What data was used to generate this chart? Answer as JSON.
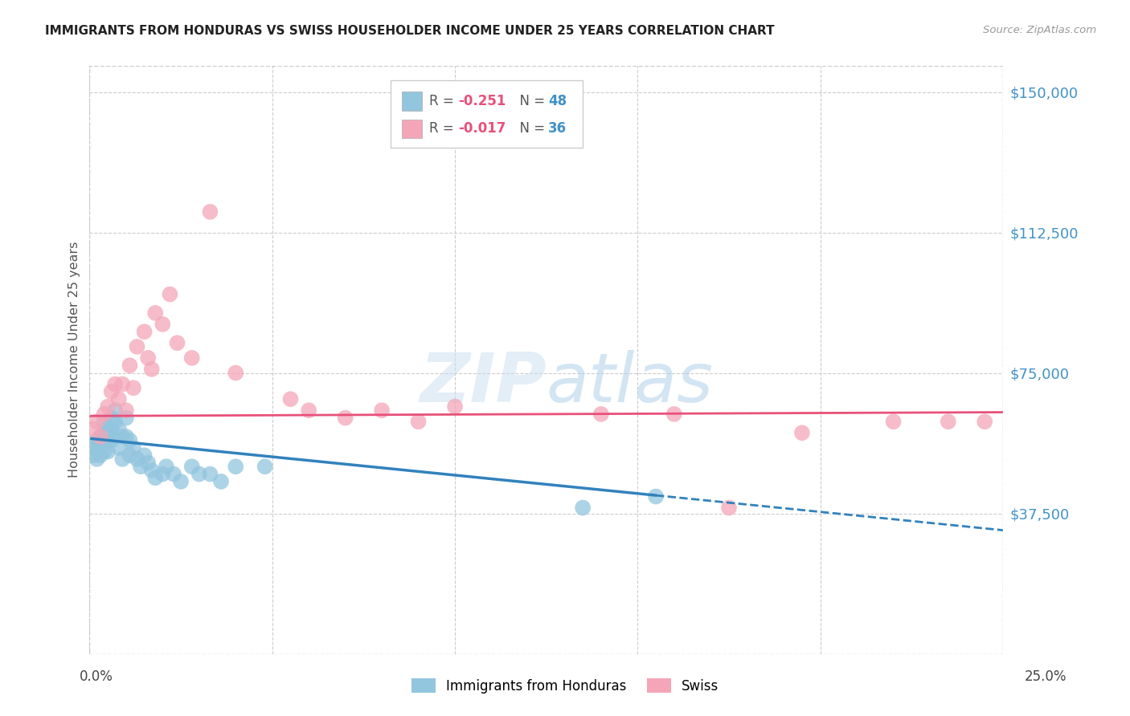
{
  "title": "IMMIGRANTS FROM HONDURAS VS SWISS HOUSEHOLDER INCOME UNDER 25 YEARS CORRELATION CHART",
  "source": "Source: ZipAtlas.com",
  "ylabel": "Householder Income Under 25 years",
  "xmin": 0.0,
  "xmax": 0.25,
  "ymin": 0,
  "ymax": 157000,
  "yticks": [
    0,
    37500,
    75000,
    112500,
    150000
  ],
  "ytick_labels": [
    "",
    "$37,500",
    "$75,000",
    "$112,500",
    "$150,000"
  ],
  "xtick_positions": [
    0.0,
    0.05,
    0.1,
    0.15,
    0.2,
    0.25
  ],
  "blue_color": "#92c5de",
  "pink_color": "#f4a6b8",
  "blue_line_color": "#3182bd",
  "pink_line_color": "#e8517a",
  "watermark": "ZIPatlas",
  "blue_R": "-0.251",
  "blue_N": "48",
  "pink_R": "-0.017",
  "pink_N": "36",
  "legend_label1": "Immigrants from Honduras",
  "legend_label2": "Swiss",
  "blue_trend_solid_end": 0.155,
  "blue_trend_x0": 0.0,
  "blue_trend_y0": 57500,
  "blue_trend_x1": 0.25,
  "blue_trend_y1": 33000,
  "pink_trend_x0": 0.0,
  "pink_trend_y0": 63500,
  "pink_trend_x1": 0.25,
  "pink_trend_y1": 64500,
  "honduras_x": [
    0.001,
    0.001,
    0.002,
    0.002,
    0.002,
    0.003,
    0.003,
    0.003,
    0.004,
    0.004,
    0.004,
    0.004,
    0.005,
    0.005,
    0.005,
    0.006,
    0.006,
    0.006,
    0.007,
    0.007,
    0.007,
    0.008,
    0.008,
    0.009,
    0.009,
    0.01,
    0.01,
    0.011,
    0.011,
    0.012,
    0.013,
    0.014,
    0.015,
    0.016,
    0.017,
    0.018,
    0.02,
    0.021,
    0.023,
    0.025,
    0.028,
    0.03,
    0.033,
    0.036,
    0.04,
    0.048,
    0.135,
    0.155
  ],
  "honduras_y": [
    55000,
    53000,
    57000,
    55000,
    52000,
    58000,
    56000,
    53000,
    62000,
    59000,
    57000,
    54000,
    60000,
    57000,
    54000,
    63000,
    60000,
    57000,
    65000,
    62000,
    58000,
    60000,
    55000,
    58000,
    52000,
    63000,
    58000,
    57000,
    53000,
    55000,
    52000,
    50000,
    53000,
    51000,
    49000,
    47000,
    48000,
    50000,
    48000,
    46000,
    50000,
    48000,
    48000,
    46000,
    50000,
    50000,
    39000,
    42000
  ],
  "swiss_x": [
    0.001,
    0.002,
    0.003,
    0.004,
    0.005,
    0.006,
    0.007,
    0.008,
    0.009,
    0.01,
    0.011,
    0.012,
    0.013,
    0.015,
    0.016,
    0.017,
    0.018,
    0.02,
    0.022,
    0.024,
    0.028,
    0.033,
    0.04,
    0.055,
    0.06,
    0.07,
    0.08,
    0.09,
    0.1,
    0.14,
    0.16,
    0.175,
    0.195,
    0.22,
    0.235,
    0.245
  ],
  "swiss_y": [
    60000,
    62000,
    58000,
    64000,
    66000,
    70000,
    72000,
    68000,
    72000,
    65000,
    77000,
    71000,
    82000,
    86000,
    79000,
    76000,
    91000,
    88000,
    96000,
    83000,
    79000,
    118000,
    75000,
    68000,
    65000,
    63000,
    65000,
    62000,
    66000,
    64000,
    64000,
    39000,
    59000,
    62000,
    62000,
    62000
  ]
}
